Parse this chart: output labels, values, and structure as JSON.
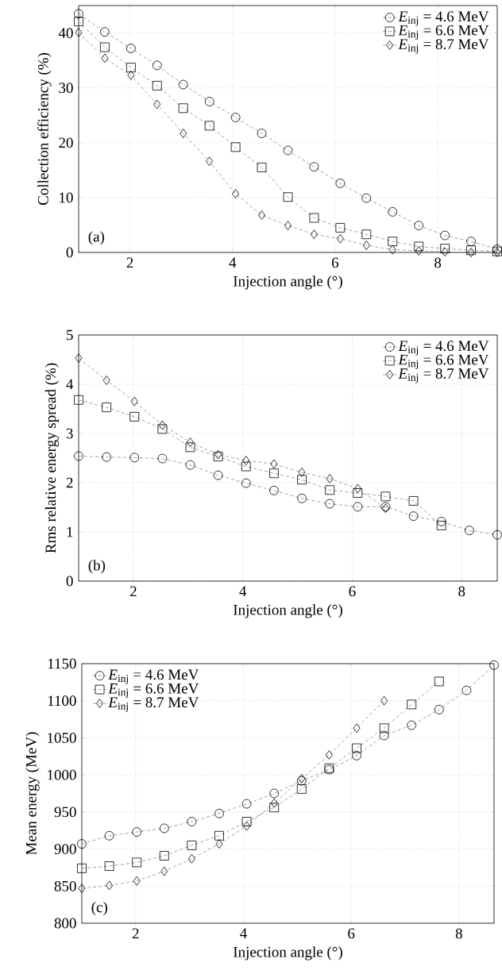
{
  "chart_data": [
    {
      "type": "line",
      "xlabel": "Injection angle (°)",
      "ylabel": "Collection efficiency (%)",
      "xlim": [
        1,
        9.16
      ],
      "ylim": [
        0,
        45
      ],
      "xticks": [
        2,
        4,
        6,
        8
      ],
      "yticks": [
        0,
        10,
        20,
        30,
        40
      ],
      "grid": true,
      "legend": "top right",
      "line_style": "dashed",
      "annotations": [
        "(a)"
      ],
      "series": [
        {
          "name": "*E*$_{inj}$ = 4.6 MeV",
          "color": "#000000",
          "marker": "circle",
          "x": [
            1.0,
            1.51,
            2.02,
            2.53,
            3.04,
            3.55,
            4.06,
            4.57,
            5.08,
            5.59,
            6.1,
            6.61,
            7.12,
            7.63,
            8.14,
            8.65,
            9.16
          ],
          "values": [
            43.5,
            40.2,
            37.2,
            34.1,
            30.6,
            27.5,
            24.6,
            21.7,
            18.6,
            15.6,
            12.6,
            9.9,
            7.4,
            4.9,
            3.1,
            2.0,
            0.6
          ]
        },
        {
          "name": "*E*$_{inj}$ = 6.6 MeV",
          "color": "#000000",
          "marker": "square",
          "x": [
            1.0,
            1.51,
            2.02,
            2.53,
            3.04,
            3.55,
            4.06,
            4.57,
            5.08,
            5.59,
            6.1,
            6.61,
            7.12,
            7.63,
            8.14,
            8.65,
            9.16
          ],
          "values": [
            42.1,
            37.4,
            33.7,
            30.4,
            26.3,
            23.1,
            19.2,
            15.5,
            10.1,
            6.3,
            4.5,
            3.3,
            2.0,
            1.1,
            0.7,
            0.4,
            0.2
          ]
        },
        {
          "name": "*E*$_{inj}$ = 8.7 MeV",
          "color": "#000000",
          "marker": "diamond",
          "x": [
            1.0,
            1.51,
            2.02,
            2.53,
            3.04,
            3.55,
            4.06,
            4.57,
            5.08,
            5.59,
            6.1,
            6.61,
            7.12,
            7.63,
            8.14,
            8.65,
            9.16
          ],
          "values": [
            40.1,
            35.4,
            32.3,
            27.0,
            21.7,
            16.6,
            10.7,
            6.8,
            4.9,
            3.3,
            2.5,
            1.3,
            0.5,
            0.3,
            0.1,
            0.0,
            0.0
          ]
        }
      ]
    },
    {
      "type": "line",
      "xlabel": "Injection angle (°)",
      "ylabel": "Rms relative energy spread (%)",
      "xlim": [
        1,
        8.65
      ],
      "ylim": [
        0,
        5
      ],
      "xticks": [
        2,
        4,
        6,
        8
      ],
      "yticks": [
        0,
        1,
        2,
        3,
        4,
        5
      ],
      "grid": true,
      "legend": "top right",
      "line_style": "dashed",
      "annotations": [
        "(b)"
      ],
      "series": [
        {
          "name": "*E*$_{inj}$ = 4.6 MeV",
          "color": "#000000",
          "marker": "circle",
          "x": [
            1.0,
            1.51,
            2.02,
            2.53,
            3.04,
            3.55,
            4.06,
            4.57,
            5.08,
            5.59,
            6.1,
            6.61,
            7.12,
            7.63,
            8.14,
            8.65
          ],
          "values": [
            2.54,
            2.52,
            2.51,
            2.49,
            2.36,
            2.15,
            1.99,
            1.84,
            1.68,
            1.57,
            1.51,
            1.51,
            1.32,
            1.21,
            1.03,
            0.94
          ]
        },
        {
          "name": "*E*$_{inj}$ = 6.6 MeV",
          "color": "#000000",
          "marker": "square",
          "x": [
            1.0,
            1.51,
            2.02,
            2.53,
            3.04,
            3.55,
            4.06,
            4.57,
            5.08,
            5.59,
            6.1,
            6.61,
            7.12,
            7.63
          ],
          "values": [
            3.68,
            3.53,
            3.34,
            3.09,
            2.72,
            2.53,
            2.33,
            2.19,
            2.06,
            1.85,
            1.79,
            1.72,
            1.63,
            1.13
          ]
        },
        {
          "name": "*E*$_{inj}$ = 8.7 MeV",
          "color": "#000000",
          "marker": "diamond",
          "x": [
            1.0,
            1.51,
            2.02,
            2.53,
            3.04,
            3.55,
            4.06,
            4.57,
            5.08,
            5.59,
            6.1,
            6.61
          ],
          "values": [
            4.53,
            4.08,
            3.65,
            3.17,
            2.82,
            2.57,
            2.45,
            2.38,
            2.21,
            2.08,
            1.88,
            1.48
          ]
        }
      ]
    },
    {
      "type": "line",
      "xlabel": "Injection angle (°)",
      "ylabel": "Mean energy (MeV)",
      "xlim": [
        1,
        8.65
      ],
      "ylim": [
        800,
        1150
      ],
      "xticks": [
        2,
        4,
        6,
        8
      ],
      "yticks": [
        800,
        850,
        900,
        950,
        1000,
        1050,
        1100,
        1150
      ],
      "grid": true,
      "legend": "top left",
      "line_style": "dashed",
      "annotations": [
        "(c)"
      ],
      "series": [
        {
          "name": "*E*$_{inj}$ = 4.6 MeV",
          "color": "#000000",
          "marker": "circle",
          "x": [
            1.0,
            1.51,
            2.02,
            2.53,
            3.04,
            3.55,
            4.06,
            4.57,
            5.08,
            5.59,
            6.1,
            6.61,
            7.12,
            7.63,
            8.14,
            8.65
          ],
          "values": [
            907,
            918,
            923,
            928,
            937,
            948,
            961,
            975,
            992,
            1007,
            1026,
            1053,
            1067,
            1088,
            1114,
            1148
          ]
        },
        {
          "name": "*E*$_{inj}$ = 6.6 MeV",
          "color": "#000000",
          "marker": "square",
          "x": [
            1.0,
            1.51,
            2.02,
            2.53,
            3.04,
            3.55,
            4.06,
            4.57,
            5.08,
            5.59,
            6.1,
            6.61,
            7.12,
            7.63
          ],
          "values": [
            874,
            877,
            882,
            891,
            905,
            918,
            937,
            956,
            981,
            1009,
            1036,
            1063,
            1095,
            1126
          ]
        },
        {
          "name": "*E*$_{inj}$ = 8.7 MeV",
          "color": "#000000",
          "marker": "diamond",
          "x": [
            1.0,
            1.51,
            2.02,
            2.53,
            3.04,
            3.55,
            4.06,
            4.57,
            5.08,
            5.59,
            6.1,
            6.61
          ],
          "values": [
            847,
            851,
            857,
            870,
            887,
            907,
            931,
            962,
            995,
            1027,
            1063,
            1100
          ]
        }
      ]
    }
  ]
}
